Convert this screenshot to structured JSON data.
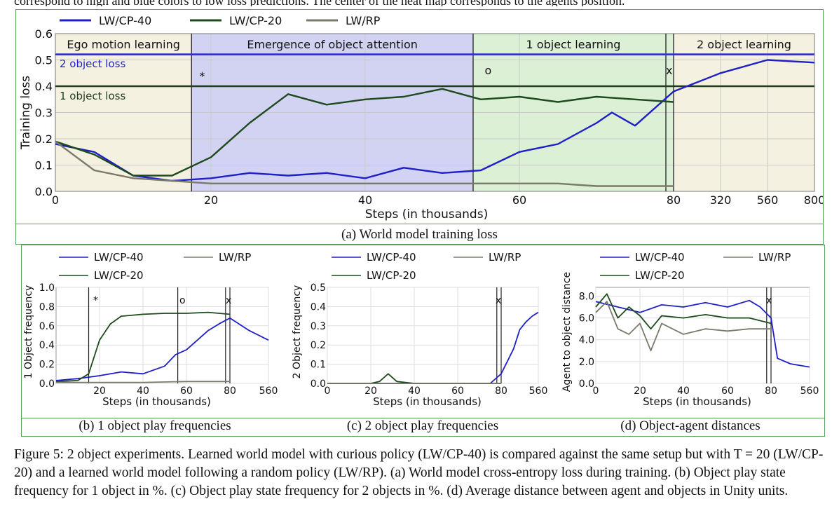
{
  "top_text": "correspond to high and blue colors to low loss predictions. The center of the heat map corresponds to the agents position.",
  "colors": {
    "cp40": "#1f1fc8",
    "cp20": "#1e4a1e",
    "rp": "#7a7a6a",
    "panel_border": "#5aa05a",
    "hline40": "#3333cc",
    "hline20": "#1e3c1e"
  },
  "captions": {
    "a": "(a) World model training loss",
    "b": "(b) 1 object play frequencies",
    "c": "(c) 2 object play frequencies",
    "d": "(d) Object-agent distances"
  },
  "figure_caption": "Figure 5: 2 object experiments. Learned world model with curious policy (LW/CP-40) is compared against the same setup but with T = 20 (LW/CP-20) and a learned world model following a random policy (LW/RP). (a) World model cross-entropy loss during training. (b) Object play state frequency for 1 object in %. (c) Object play state frequency for 2 objects in %. (d) Average distance between agent and objects in Unity units.",
  "chart_data": [
    {
      "id": "a",
      "type": "line",
      "legend": [
        "LW/CP-40",
        "LW/CP-20",
        "LW/RP"
      ],
      "xlabel": "Steps (in thousands)",
      "ylabel": "Training loss",
      "x_ticks": [
        "0",
        "20",
        "40",
        "60",
        "80",
        "320",
        "560",
        "800"
      ],
      "y_ticks": [
        "0.0",
        "0.1",
        "0.2",
        "0.3",
        "0.4",
        "0.5",
        "0.6"
      ],
      "ylim": [
        0,
        0.6
      ],
      "regions": [
        "Ego motion learning",
        "Emergence of object attention",
        "1 object learning",
        "2 object learning"
      ],
      "markers": [
        "*",
        "o",
        "x"
      ],
      "hlines": [
        {
          "label": "2 object loss",
          "y": 0.52
        },
        {
          "label": "1 object loss",
          "y": 0.4
        }
      ],
      "series": [
        {
          "name": "LW/CP-40",
          "x": [
            0,
            5,
            10,
            15,
            20,
            25,
            30,
            35,
            40,
            45,
            50,
            55,
            60,
            65,
            70,
            72,
            75,
            80,
            320,
            560,
            800
          ],
          "y": [
            0.18,
            0.15,
            0.06,
            0.04,
            0.05,
            0.07,
            0.06,
            0.07,
            0.05,
            0.09,
            0.07,
            0.08,
            0.15,
            0.18,
            0.26,
            0.3,
            0.25,
            0.38,
            0.45,
            0.5,
            0.49
          ]
        },
        {
          "name": "LW/CP-20",
          "x": [
            0,
            5,
            10,
            15,
            20,
            25,
            30,
            35,
            40,
            45,
            50,
            55,
            60,
            65,
            70,
            75,
            80
          ],
          "y": [
            0.19,
            0.14,
            0.06,
            0.06,
            0.13,
            0.26,
            0.37,
            0.33,
            0.35,
            0.36,
            0.39,
            0.35,
            0.36,
            0.34,
            0.36,
            0.35,
            0.34
          ]
        },
        {
          "name": "LW/RP",
          "x": [
            0,
            5,
            10,
            15,
            20,
            25,
            30,
            35,
            40,
            45,
            50,
            55,
            60,
            65,
            70,
            75,
            80
          ],
          "y": [
            0.19,
            0.08,
            0.05,
            0.04,
            0.03,
            0.03,
            0.03,
            0.03,
            0.03,
            0.03,
            0.03,
            0.03,
            0.03,
            0.03,
            0.02,
            0.02,
            0.02
          ]
        }
      ]
    },
    {
      "id": "b",
      "type": "line",
      "legend": [
        "LW/CP-40",
        "LW/RP",
        "LW/CP-20"
      ],
      "xlabel": "Steps (in thousands)",
      "ylabel": "1 Object frequency",
      "x_ticks": [
        "20",
        "40",
        "60",
        "80",
        "560"
      ],
      "y_ticks": [
        "0.0",
        "0.2",
        "0.4",
        "0.6",
        "0.8",
        "1.0"
      ],
      "ylim": [
        0,
        1.0
      ],
      "markers": [
        "*",
        "o",
        "x"
      ],
      "series": [
        {
          "name": "LW/CP-40",
          "x": [
            0,
            10,
            20,
            30,
            40,
            50,
            55,
            60,
            65,
            70,
            75,
            80,
            320,
            560
          ],
          "y": [
            0.03,
            0.05,
            0.08,
            0.12,
            0.1,
            0.18,
            0.3,
            0.35,
            0.45,
            0.55,
            0.62,
            0.68,
            0.55,
            0.45
          ]
        },
        {
          "name": "LW/CP-20",
          "x": [
            0,
            10,
            15,
            20,
            25,
            30,
            40,
            50,
            60,
            70,
            80
          ],
          "y": [
            0.02,
            0.03,
            0.1,
            0.45,
            0.62,
            0.7,
            0.72,
            0.73,
            0.73,
            0.74,
            0.72
          ]
        },
        {
          "name": "LW/RP",
          "x": [
            0,
            20,
            40,
            60,
            80
          ],
          "y": [
            0.01,
            0.01,
            0.01,
            0.02,
            0.02
          ]
        }
      ]
    },
    {
      "id": "c",
      "type": "line",
      "legend": [
        "LW/CP-40",
        "LW/RP",
        "LW/CP-20"
      ],
      "xlabel": "Steps (in thousands)",
      "ylabel": "2 Object frequency",
      "x_ticks": [
        "0",
        "20",
        "40",
        "60",
        "80",
        "560"
      ],
      "y_ticks": [
        "0.0",
        "0.1",
        "0.2",
        "0.3",
        "0.4",
        "0.5"
      ],
      "ylim": [
        0,
        0.5
      ],
      "markers": [
        "x"
      ],
      "series": [
        {
          "name": "LW/CP-40",
          "x": [
            0,
            20,
            40,
            60,
            75,
            80,
            240,
            320,
            400,
            480,
            560
          ],
          "y": [
            0.0,
            0.0,
            0.0,
            0.0,
            0.0,
            0.05,
            0.18,
            0.28,
            0.32,
            0.35,
            0.37
          ]
        },
        {
          "name": "LW/CP-20",
          "x": [
            0,
            20,
            24,
            28,
            32,
            40,
            60,
            80
          ],
          "y": [
            0.0,
            0.0,
            0.01,
            0.05,
            0.01,
            0.0,
            0.0,
            0.0
          ]
        },
        {
          "name": "LW/RP",
          "x": [
            0,
            20,
            40,
            60,
            80
          ],
          "y": [
            0.0,
            0.0,
            0.0,
            0.0,
            0.0
          ]
        }
      ]
    },
    {
      "id": "d",
      "type": "line",
      "legend": [
        "LW/CP-40",
        "LW/RP",
        "LW/CP-20"
      ],
      "xlabel": "Steps (in thousands)",
      "ylabel": "Agent to object distance",
      "x_ticks": [
        "0",
        "20",
        "40",
        "60",
        "80",
        "560"
      ],
      "y_ticks": [
        "0.0",
        "2.0",
        "4.0",
        "6.0",
        "8.0"
      ],
      "ylim": [
        0,
        8.8
      ],
      "markers": [
        "x"
      ],
      "series": [
        {
          "name": "LW/CP-40",
          "x": [
            0,
            10,
            20,
            30,
            40,
            50,
            60,
            70,
            75,
            80,
            160,
            320,
            480,
            560
          ],
          "y": [
            7.5,
            7.0,
            6.5,
            7.2,
            7.0,
            7.4,
            7.0,
            7.6,
            7.0,
            6.0,
            2.3,
            1.8,
            1.6,
            1.5
          ]
        },
        {
          "name": "LW/CP-20",
          "x": [
            0,
            5,
            10,
            15,
            20,
            25,
            30,
            40,
            50,
            60,
            70,
            80
          ],
          "y": [
            7.0,
            8.2,
            6.0,
            7.0,
            6.2,
            5.0,
            6.2,
            6.0,
            6.3,
            6.0,
            6.0,
            5.5
          ]
        },
        {
          "name": "LW/RP",
          "x": [
            0,
            5,
            10,
            15,
            20,
            25,
            30,
            40,
            50,
            60,
            70,
            80
          ],
          "y": [
            6.5,
            7.5,
            5.0,
            4.5,
            5.5,
            3.0,
            5.5,
            4.5,
            5.0,
            4.8,
            5.0,
            5.0
          ]
        }
      ]
    }
  ]
}
